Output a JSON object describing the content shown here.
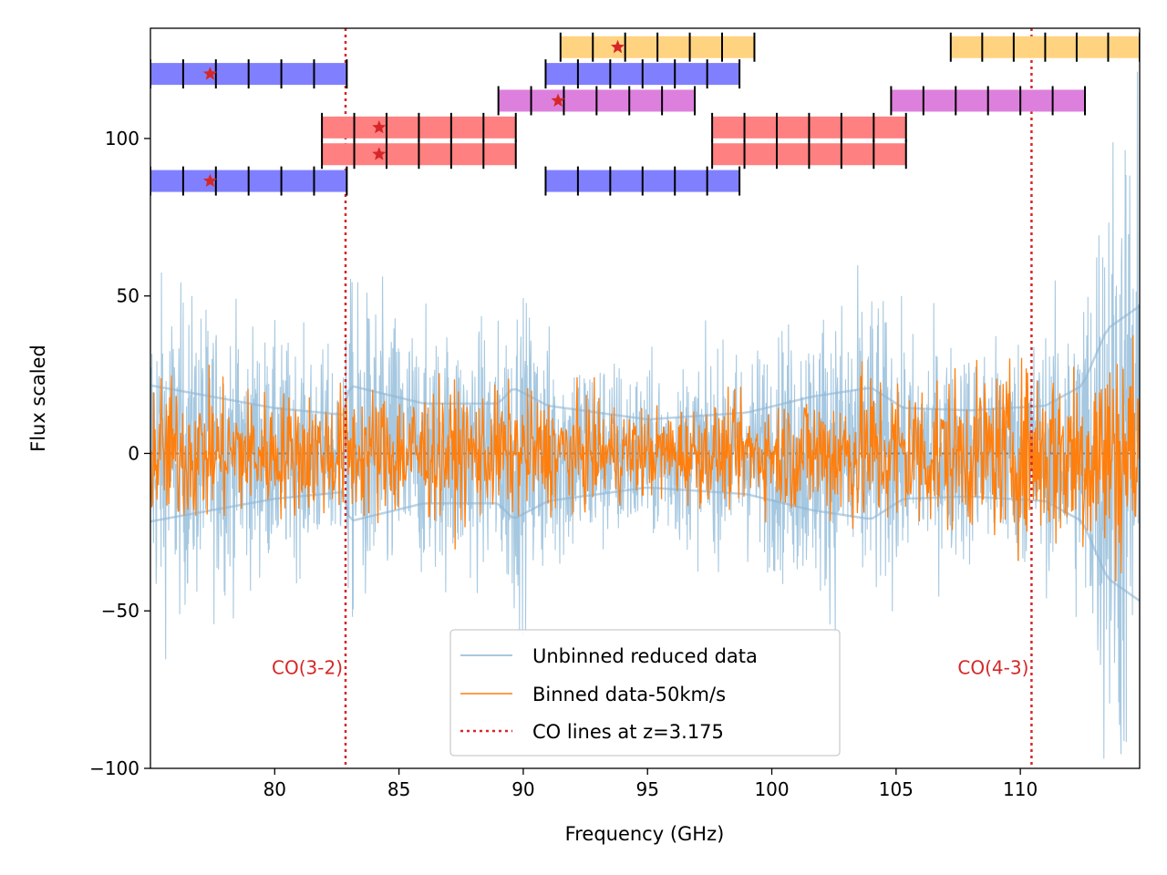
{
  "chart_data": {
    "type": "line",
    "title": "",
    "xlabel": "Frequency (GHz)",
    "ylabel": "Flux scaled",
    "xlim": [
      75.0,
      114.8
    ],
    "ylim": [
      -100,
      135
    ],
    "xticks": [
      80,
      85,
      90,
      95,
      100,
      105,
      110
    ],
    "yticks": [
      -100,
      -50,
      0,
      50,
      100
    ],
    "ytick_labels": [
      "−100",
      "−50",
      "0",
      "50",
      "100"
    ],
    "grid": false,
    "colors": {
      "unbinned": "#a6c8e0",
      "binned": "#ff7f0e",
      "co_lines": "#d62728",
      "zero_line": "#808080",
      "bar_blue": "#8080ff",
      "bar_red": "#ff8080",
      "bar_orange": "#ffd380",
      "bar_magenta": "#dd80dd",
      "tick_mark": "#000000",
      "star": "#d62728"
    },
    "series": [
      {
        "name": "Unbinned reduced data",
        "style": "band",
        "noise_envelope": [
          {
            "x": 75.0,
            "y": 60
          },
          {
            "x": 78.0,
            "y": 48
          },
          {
            "x": 80.0,
            "y": 40
          },
          {
            "x": 82.8,
            "y": 34
          },
          {
            "x": 83.0,
            "y": 60
          },
          {
            "x": 86.0,
            "y": 44
          },
          {
            "x": 89.0,
            "y": 44
          },
          {
            "x": 89.6,
            "y": 58
          },
          {
            "x": 91.0,
            "y": 42
          },
          {
            "x": 95.0,
            "y": 30
          },
          {
            "x": 99.0,
            "y": 36
          },
          {
            "x": 101.6,
            "y": 50
          },
          {
            "x": 104.0,
            "y": 58
          },
          {
            "x": 105.3,
            "y": 40
          },
          {
            "x": 108.0,
            "y": 38
          },
          {
            "x": 111.0,
            "y": 42
          },
          {
            "x": 112.5,
            "y": 60
          },
          {
            "x": 113.5,
            "y": 110
          },
          {
            "x": 114.8,
            "y": 130
          }
        ]
      },
      {
        "name": "Binned data-50km/s",
        "style": "line",
        "noise_envelope": [
          {
            "x": 75.0,
            "y": 20
          },
          {
            "x": 80.0,
            "y": 16
          },
          {
            "x": 85.0,
            "y": 18
          },
          {
            "x": 90.0,
            "y": 16
          },
          {
            "x": 95.0,
            "y": 12
          },
          {
            "x": 100.0,
            "y": 14
          },
          {
            "x": 104.0,
            "y": 22
          },
          {
            "x": 108.0,
            "y": 20
          },
          {
            "x": 111.0,
            "y": 24
          },
          {
            "x": 114.8,
            "y": 34
          }
        ]
      }
    ],
    "co_lines": [
      {
        "label": "CO(3-2)",
        "x": 82.85
      },
      {
        "label": "CO(4-3)",
        "x": 110.45
      }
    ],
    "coverage_bars": [
      {
        "row": 5,
        "x0": 91.5,
        "x1": 99.3,
        "color": "orange",
        "star_x": 93.8
      },
      {
        "row": 5,
        "x0": 107.2,
        "x1": 114.8,
        "color": "orange",
        "star_x": null
      },
      {
        "row": 4,
        "x0": 75.0,
        "x1": 82.9,
        "color": "blue",
        "star_x": 77.4
      },
      {
        "row": 4,
        "x0": 90.9,
        "x1": 98.7,
        "color": "blue",
        "star_x": null
      },
      {
        "row": 3,
        "x0": 89.0,
        "x1": 96.9,
        "color": "magenta",
        "star_x": 91.4
      },
      {
        "row": 3,
        "x0": 104.8,
        "x1": 112.6,
        "color": "magenta",
        "star_x": null
      },
      {
        "row": 2,
        "x0": 81.9,
        "x1": 89.7,
        "color": "red",
        "star_x": 84.2
      },
      {
        "row": 2,
        "x0": 97.6,
        "x1": 105.4,
        "color": "red",
        "star_x": null
      },
      {
        "row": 1,
        "x0": 81.9,
        "x1": 89.7,
        "color": "red",
        "star_x": 84.2
      },
      {
        "row": 1,
        "x0": 97.6,
        "x1": 105.4,
        "color": "red",
        "star_x": null
      },
      {
        "row": 0,
        "x0": 75.0,
        "x1": 82.9,
        "color": "blue",
        "star_x": 77.4
      },
      {
        "row": 0,
        "x0": 90.9,
        "x1": 98.7,
        "color": "blue",
        "star_x": null
      }
    ],
    "row_y": [
      86.5,
      95.0,
      103.5,
      112.0,
      120.5,
      129.0
    ],
    "legend": {
      "placement": "lower-center",
      "entries": [
        {
          "label": "Unbinned reduced data",
          "key": "unbinned"
        },
        {
          "label": "Binned data-50km/s",
          "key": "binned"
        },
        {
          "label": "CO lines at z=3.175",
          "key": "co_lines"
        }
      ]
    }
  }
}
